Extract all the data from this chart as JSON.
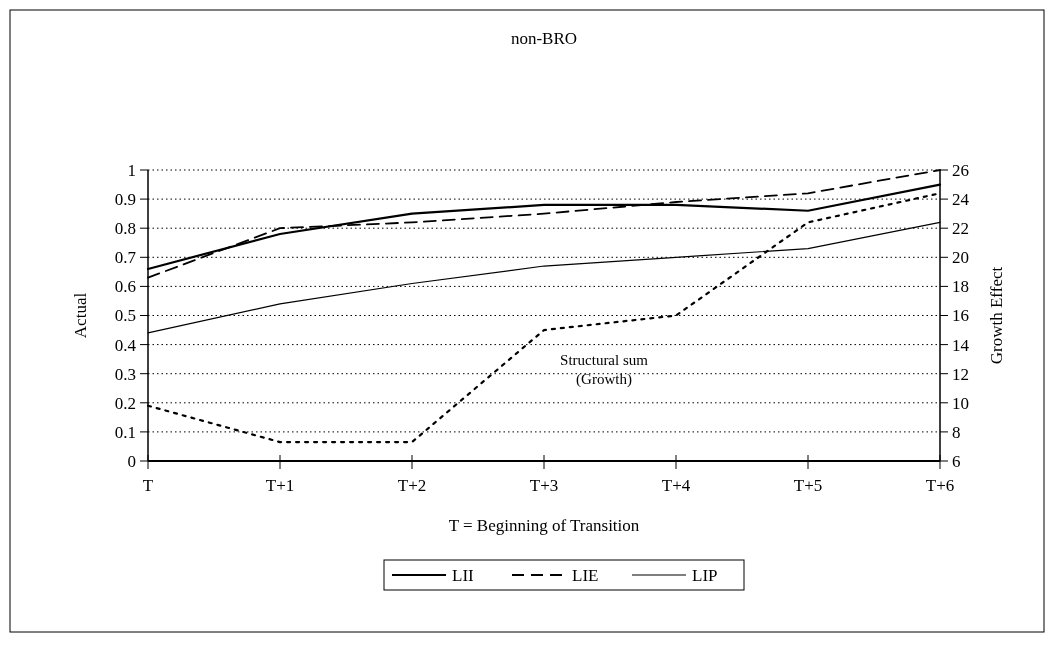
{
  "chart_data": {
    "type": "line",
    "title": "non-BRO",
    "xlabel": "T = Beginning of Transition",
    "ylabel": "Actual",
    "y2label": "Growth Effect",
    "categories": [
      "T",
      "T+1",
      "T+2",
      "T+3",
      "T+4",
      "T+5",
      "T+6"
    ],
    "series": [
      {
        "name": "LII",
        "color": "#000000",
        "line_style": "solid",
        "values": [
          0.66,
          0.78,
          0.85,
          0.88,
          0.88,
          0.86,
          0.95
        ]
      },
      {
        "name": "LIE",
        "color": "#000000",
        "line_style": "dashed",
        "values": [
          0.63,
          0.8,
          0.82,
          0.85,
          0.89,
          0.92,
          1.0
        ]
      },
      {
        "name": "LIP",
        "color": "#000000",
        "line_style": "solid",
        "values": [
          0.44,
          0.54,
          0.61,
          0.67,
          0.7,
          0.73,
          0.82
        ]
      },
      {
        "color": "#000000",
        "line_style": "dotted",
        "axis": "y2",
        "values": [
          9.8,
          7.3,
          7.3,
          15,
          16,
          22.4,
          24.4
        ]
      }
    ],
    "ylim": [
      0,
      1
    ],
    "yticks": [
      0,
      0.1,
      0.2,
      0.3,
      0.4,
      0.5,
      0.6,
      0.7,
      0.8,
      0.9,
      1
    ],
    "y2lim": [
      6,
      26
    ],
    "y2ticks": [
      6,
      8,
      10,
      12,
      14,
      16,
      18,
      20,
      22,
      24,
      26
    ],
    "grid": "y",
    "legend": "bottom",
    "annotations": [
      "Structural sum (Growth)"
    ]
  }
}
